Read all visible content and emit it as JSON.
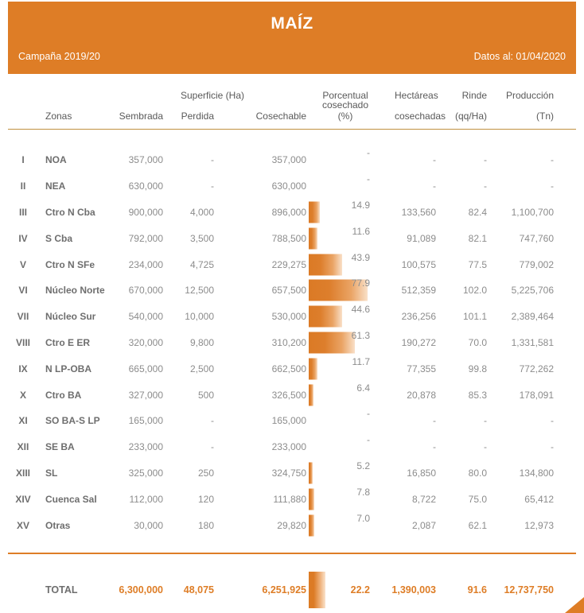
{
  "header": {
    "title": "MAÍZ",
    "campaign": "Campaña 2019/20",
    "data_as_of": "Datos al: 01/04/2020"
  },
  "colors": {
    "accent_orange": "#DE7D26",
    "gold_rule": "#C09140",
    "bar_start": "#DB7A25",
    "bar_end": "#F9E0C8",
    "text_gray": "#8C8C8C",
    "label_gray": "#6E6E6E"
  },
  "table": {
    "columns": {
      "zonas": "Zonas",
      "superficie_group": "Superficie (Ha)",
      "sembrada": "Sembrada",
      "perdida": "Perdida",
      "cosechable": "Cosechable",
      "porcentual_line1": "Porcentual",
      "porcentual_line2": "cosechado (%)",
      "hectareas_line1": "Hectáreas",
      "hectareas_line2": "cosechadas",
      "rinde_line1": "Rinde",
      "rinde_line2": "(qq/Ha)",
      "produccion_line1": "Producción",
      "produccion_line2": "(Tn)"
    },
    "rows": [
      {
        "numeral": "I",
        "zona": "NOA",
        "sembrada": "357,000",
        "perdida": "-",
        "cosechable": "357,000",
        "pct_label": "-",
        "pct_value": null,
        "hectareas": "-",
        "rinde": "-",
        "produccion": "-"
      },
      {
        "numeral": "II",
        "zona": "NEA",
        "sembrada": "630,000",
        "perdida": "-",
        "cosechable": "630,000",
        "pct_label": "-",
        "pct_value": null,
        "hectareas": "-",
        "rinde": "-",
        "produccion": "-"
      },
      {
        "numeral": "III",
        "zona": "Ctro N Cba",
        "sembrada": "900,000",
        "perdida": "4,000",
        "cosechable": "896,000",
        "pct_label": "14.9",
        "pct_value": 14.9,
        "hectareas": "133,560",
        "rinde": "82.4",
        "produccion": "1,100,700"
      },
      {
        "numeral": "IV",
        "zona": "S Cba",
        "sembrada": "792,000",
        "perdida": "3,500",
        "cosechable": "788,500",
        "pct_label": "11.6",
        "pct_value": 11.6,
        "hectareas": "91,089",
        "rinde": "82.1",
        "produccion": "747,760"
      },
      {
        "numeral": "V",
        "zona": "Ctro N SFe",
        "sembrada": "234,000",
        "perdida": "4,725",
        "cosechable": "229,275",
        "pct_label": "43.9",
        "pct_value": 43.9,
        "hectareas": "100,575",
        "rinde": "77.5",
        "produccion": "779,002"
      },
      {
        "numeral": "VI",
        "zona": "Núcleo Norte",
        "sembrada": "670,000",
        "perdida": "12,500",
        "cosechable": "657,500",
        "pct_label": "77.9",
        "pct_value": 77.9,
        "hectareas": "512,359",
        "rinde": "102.0",
        "produccion": "5,225,706"
      },
      {
        "numeral": "VII",
        "zona": "Núcleo Sur",
        "sembrada": "540,000",
        "perdida": "10,000",
        "cosechable": "530,000",
        "pct_label": "44.6",
        "pct_value": 44.6,
        "hectareas": "236,256",
        "rinde": "101.1",
        "produccion": "2,389,464"
      },
      {
        "numeral": "VIII",
        "zona": "Ctro E ER",
        "sembrada": "320,000",
        "perdida": "9,800",
        "cosechable": "310,200",
        "pct_label": "61.3",
        "pct_value": 61.3,
        "hectareas": "190,272",
        "rinde": "70.0",
        "produccion": "1,331,581"
      },
      {
        "numeral": "IX",
        "zona": "N LP-OBA",
        "sembrada": "665,000",
        "perdida": "2,500",
        "cosechable": "662,500",
        "pct_label": "11.7",
        "pct_value": 11.7,
        "hectareas": "77,355",
        "rinde": "99.8",
        "produccion": "772,262"
      },
      {
        "numeral": "X",
        "zona": "Ctro BA",
        "sembrada": "327,000",
        "perdida": "500",
        "cosechable": "326,500",
        "pct_label": "6.4",
        "pct_value": 6.4,
        "hectareas": "20,878",
        "rinde": "85.3",
        "produccion": "178,091"
      },
      {
        "numeral": "XI",
        "zona": "SO BA-S LP",
        "sembrada": "165,000",
        "perdida": "-",
        "cosechable": "165,000",
        "pct_label": "-",
        "pct_value": null,
        "hectareas": "-",
        "rinde": "-",
        "produccion": "-"
      },
      {
        "numeral": "XII",
        "zona": "SE BA",
        "sembrada": "233,000",
        "perdida": "-",
        "cosechable": "233,000",
        "pct_label": "-",
        "pct_value": null,
        "hectareas": "-",
        "rinde": "-",
        "produccion": "-"
      },
      {
        "numeral": "XIII",
        "zona": "SL",
        "sembrada": "325,000",
        "perdida": "250",
        "cosechable": "324,750",
        "pct_label": "5.2",
        "pct_value": 5.2,
        "hectareas": "16,850",
        "rinde": "80.0",
        "produccion": "134,800"
      },
      {
        "numeral": "XIV",
        "zona": "Cuenca Sal",
        "sembrada": "112,000",
        "perdida": "120",
        "cosechable": "111,880",
        "pct_label": "7.8",
        "pct_value": 7.8,
        "hectareas": "8,722",
        "rinde": "75.0",
        "produccion": "65,412"
      },
      {
        "numeral": "XV",
        "zona": "Otras",
        "sembrada": "30,000",
        "perdida": "180",
        "cosechable": "29,820",
        "pct_label": "7.0",
        "pct_value": 7.0,
        "hectareas": "2,087",
        "rinde": "62.1",
        "produccion": "12,973"
      }
    ],
    "total": {
      "label": "TOTAL",
      "sembrada": "6,300,000",
      "perdida": "48,075",
      "cosechable": "6,251,925",
      "pct_label": "22.2",
      "pct_value": 22.2,
      "hectareas": "1,390,003",
      "rinde": "91.6",
      "produccion": "12,737,750"
    }
  },
  "chart_data": {
    "type": "table",
    "title": "MAÍZ",
    "subtitle": "Campaña 2019/20 — Datos al: 01/04/2020",
    "columns": [
      "Zona",
      "Superficie Sembrada (Ha)",
      "Superficie Perdida (Ha)",
      "Superficie Cosechable (Ha)",
      "Porcentual cosechado (%)",
      "Hectáreas cosechadas",
      "Rinde (qq/Ha)",
      "Producción (Tn)"
    ],
    "rows": [
      [
        "I NOA",
        357000,
        null,
        357000,
        null,
        null,
        null,
        null
      ],
      [
        "II NEA",
        630000,
        null,
        630000,
        null,
        null,
        null,
        null
      ],
      [
        "III Ctro N Cba",
        900000,
        4000,
        896000,
        14.9,
        133560,
        82.4,
        1100700
      ],
      [
        "IV S Cba",
        792000,
        3500,
        788500,
        11.6,
        91089,
        82.1,
        747760
      ],
      [
        "V Ctro N SFe",
        234000,
        4725,
        229275,
        43.9,
        100575,
        77.5,
        779002
      ],
      [
        "VI Núcleo Norte",
        670000,
        12500,
        657500,
        77.9,
        512359,
        102.0,
        5225706
      ],
      [
        "VII Núcleo Sur",
        540000,
        10000,
        530000,
        44.6,
        236256,
        101.1,
        2389464
      ],
      [
        "VIII Ctro E ER",
        320000,
        9800,
        310200,
        61.3,
        190272,
        70.0,
        1331581
      ],
      [
        "IX N LP-OBA",
        665000,
        2500,
        662500,
        11.7,
        77355,
        99.8,
        772262
      ],
      [
        "X Ctro BA",
        327000,
        500,
        326500,
        6.4,
        20878,
        85.3,
        178091
      ],
      [
        "XI SO BA-S LP",
        165000,
        null,
        165000,
        null,
        null,
        null,
        null
      ],
      [
        "XII SE BA",
        233000,
        null,
        233000,
        null,
        null,
        null,
        null
      ],
      [
        "XIII SL",
        325000,
        250,
        324750,
        5.2,
        16850,
        80.0,
        134800
      ],
      [
        "XIV Cuenca Sal",
        112000,
        120,
        111880,
        7.8,
        8722,
        75.0,
        65412
      ],
      [
        "XV Otras",
        30000,
        180,
        29820,
        7.0,
        2087,
        62.1,
        12973
      ]
    ],
    "total_row": [
      "TOTAL",
      6300000,
      48075,
      6251925,
      22.2,
      1390003,
      91.6,
      12737750
    ],
    "bar_column": "Porcentual cosechado (%)",
    "bar_type": "horizontal-bar-in-cell",
    "bar_range": [
      0,
      100
    ]
  }
}
